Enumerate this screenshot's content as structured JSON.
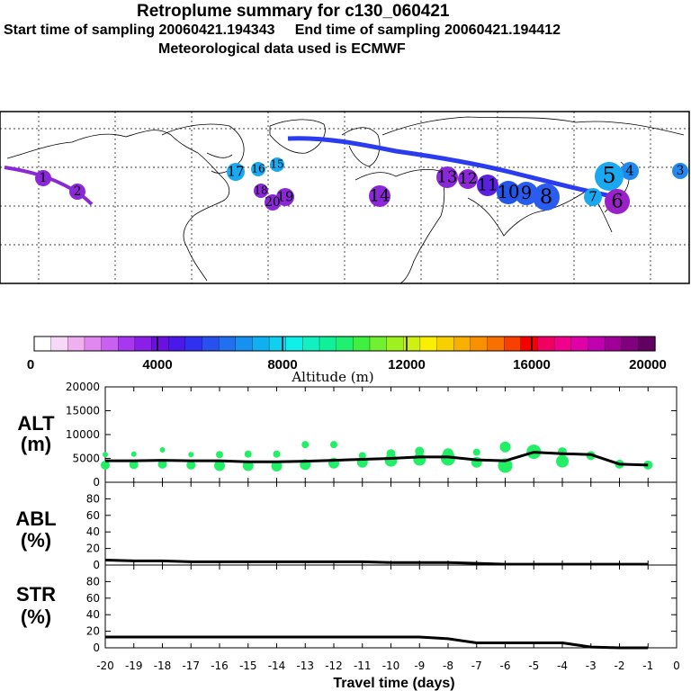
{
  "header": {
    "title": "Retroplume summary for c130_060421",
    "start_label": "Start time of sampling 20060421.194343",
    "end_label": "End time of sampling 20060421.194412",
    "met_label": "Meteorological data used is ECMWF"
  },
  "map": {
    "markers": [
      {
        "label": "1",
        "color": "#8a28d8"
      },
      {
        "label": "2",
        "color": "#8a28d8"
      },
      {
        "label": "3",
        "color": "#2288ee"
      },
      {
        "label": "4",
        "color": "#2288ee"
      },
      {
        "label": "5",
        "color": "#1aa8f0"
      },
      {
        "label": "6",
        "color": "#9a20c8"
      },
      {
        "label": "7",
        "color": "#1aa8f0"
      },
      {
        "label": "8",
        "color": "#2a5cf0"
      },
      {
        "label": "9",
        "color": "#2a5cf0"
      },
      {
        "label": "10",
        "color": "#2255e8"
      },
      {
        "label": "11",
        "color": "#5a22e0"
      },
      {
        "label": "12",
        "color": "#8a28d8"
      },
      {
        "label": "13",
        "color": "#8a28d8"
      },
      {
        "label": "14",
        "color": "#8a28d8"
      },
      {
        "label": "15",
        "color": "#1aa8f0"
      },
      {
        "label": "16",
        "color": "#1aa8f0"
      },
      {
        "label": "17",
        "color": "#1aa8f0"
      },
      {
        "label": "18",
        "color": "#8a28d8"
      },
      {
        "label": "19",
        "color": "#8a28d8"
      },
      {
        "label": "20",
        "color": "#8a28d8"
      }
    ]
  },
  "colorbar": {
    "title": "Altitude (m)",
    "ticks": [
      "0",
      "4000",
      "8000",
      "12000",
      "16000",
      "20000"
    ],
    "colors": [
      "#ffffff",
      "#f8d8f8",
      "#f0b0f0",
      "#e088f0",
      "#c860f0",
      "#a838f0",
      "#8a20e8",
      "#6a10e0",
      "#4a18e8",
      "#3030f0",
      "#2850f0",
      "#2070f0",
      "#1890f0",
      "#10b0f0",
      "#10d0f0",
      "#10f0e8",
      "#10f0c0",
      "#10f098",
      "#20f070",
      "#40f040",
      "#70f030",
      "#a0f020",
      "#d0f010",
      "#f8f000",
      "#f8d000",
      "#f8b000",
      "#f89000",
      "#f87000",
      "#f84000",
      "#f80000",
      "#f00060",
      "#f0008c",
      "#e000a8",
      "#c000b0",
      "#a00098",
      "#800080",
      "#600060"
    ]
  },
  "chart_data": {
    "type": "line",
    "x": [
      -20,
      -19,
      -18,
      -17,
      -16,
      -15,
      -14,
      -13,
      -12,
      -11,
      -10,
      -9,
      -8,
      -7,
      -6,
      -5,
      -4,
      -3,
      -2,
      -1
    ],
    "x_ticks": [
      "-20",
      "-19",
      "-18",
      "-17",
      "-16",
      "-15",
      "-14",
      "-13",
      "-12",
      "-11",
      "-10",
      "-9",
      "-8",
      "-7",
      "-6",
      "-5",
      "-4",
      "-3",
      "-2",
      "-1",
      "0"
    ],
    "xlabel": "Travel time (days)",
    "panels": [
      {
        "label": "ALT",
        "unit": "(m)",
        "ylim": [
          0,
          20000
        ],
        "yticks": [
          "0",
          "5000",
          "10000",
          "15000",
          "20000"
        ],
        "mean": [
          4500,
          4500,
          4600,
          4500,
          4500,
          4300,
          4300,
          4400,
          4600,
          4800,
          5000,
          5300,
          5300,
          4700,
          4500,
          6300,
          6000,
          5800,
          3800,
          3600
        ],
        "dots_low": [
          3600,
          3700,
          3800,
          3600,
          3500,
          3500,
          3400,
          3700,
          4000,
          4200,
          4600,
          4800,
          5000,
          4200,
          3500,
          6400,
          4400,
          5600,
          3800,
          3600
        ],
        "dots_high": [
          5800,
          5900,
          6800,
          5800,
          5800,
          5900,
          5900,
          7900,
          7900,
          5600,
          6000,
          6500,
          6000,
          6300,
          7400,
          6600,
          6400,
          0,
          0,
          0
        ]
      },
      {
        "label": "ABL",
        "unit": "(%)",
        "ylim": [
          0,
          100
        ],
        "yticks": [
          "0",
          "20",
          "40",
          "60",
          "80"
        ],
        "values": [
          6,
          5,
          5,
          4,
          4,
          4,
          4,
          4,
          4,
          4,
          3,
          3,
          3,
          2,
          1,
          1,
          1,
          1,
          1,
          1
        ]
      },
      {
        "label": "STR",
        "unit": "(%)",
        "ylim": [
          0,
          100
        ],
        "yticks": [
          "0",
          "20",
          "40",
          "60",
          "80"
        ],
        "values": [
          13,
          13,
          13,
          13,
          13,
          13,
          13,
          13,
          13,
          13,
          13,
          13,
          11,
          6,
          6,
          6,
          6,
          1,
          0,
          0
        ]
      }
    ]
  }
}
